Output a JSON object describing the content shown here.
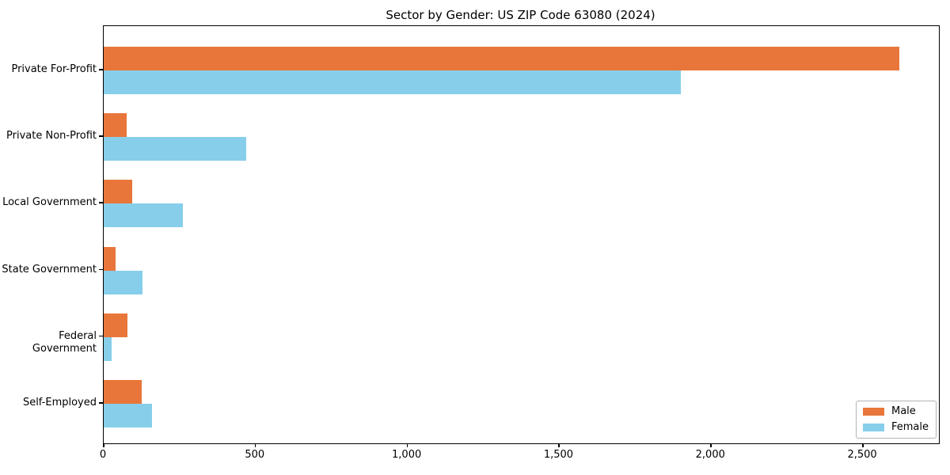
{
  "title": "Sector by Gender: US ZIP Code 63080 (2024)",
  "colors": {
    "male": "#E8763A",
    "female": "#87CEEB",
    "axis": "#000000",
    "legend_border": "#b4b4b4",
    "background": "#ffffff"
  },
  "legend": {
    "items": [
      {
        "label": "Male",
        "color": "#E8763A"
      },
      {
        "label": "Female",
        "color": "#87CEEB"
      }
    ],
    "position": "lower right"
  },
  "chart_data": {
    "type": "bar",
    "orientation": "horizontal",
    "title": "Sector by Gender: US ZIP Code 63080 (2024)",
    "categories": [
      "Private For-Profit",
      "Private Non-Profit",
      "Local Government",
      "State Government",
      "Federal Government",
      "Self-Employed"
    ],
    "series": [
      {
        "name": "Male",
        "color": "#E8763A",
        "values": [
          2620,
          75,
          93,
          38,
          78,
          125
        ]
      },
      {
        "name": "Female",
        "color": "#87CEEB",
        "values": [
          1900,
          470,
          260,
          128,
          25,
          158
        ]
      }
    ],
    "xlabel": "",
    "ylabel": "",
    "xlim": [
      0,
      2750
    ],
    "xticks": [
      0,
      500,
      1000,
      1500,
      2000,
      2500
    ],
    "xtick_labels": [
      "0",
      "500",
      "1,000",
      "1,500",
      "2,000",
      "2,500"
    ],
    "grid": false,
    "legend_position": "lower right"
  }
}
